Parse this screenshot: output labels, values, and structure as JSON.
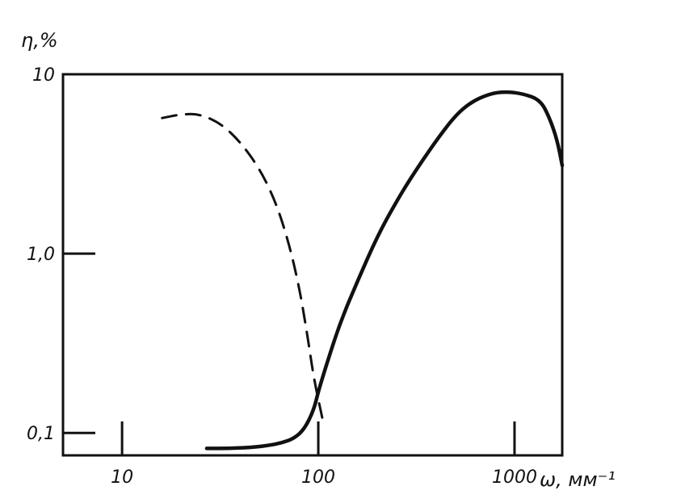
{
  "chart_data": {
    "type": "line",
    "title": "",
    "xlabel": "ω, мм⁻¹",
    "ylabel": "η,%",
    "x_scale": "log",
    "y_scale": "log",
    "xlim": [
      5,
      1750
    ],
    "ylim": [
      0.075,
      10
    ],
    "x_ticks": [
      {
        "value": 10,
        "label": "10"
      },
      {
        "value": 100,
        "label": "100"
      },
      {
        "value": 1000,
        "label": "1000"
      }
    ],
    "y_ticks": [
      {
        "value": 0.1,
        "label": "0,1"
      },
      {
        "value": 1,
        "label": "1,0"
      },
      {
        "value": 10,
        "label": "10"
      }
    ],
    "grid": false,
    "series": [
      {
        "style": "dashed",
        "color": "#111111",
        "points": [
          [
            16,
            5.7
          ],
          [
            20,
            6.0
          ],
          [
            25,
            6.0
          ],
          [
            32,
            5.3
          ],
          [
            40,
            4.2
          ],
          [
            50,
            3.0
          ],
          [
            60,
            2.0
          ],
          [
            70,
            1.2
          ],
          [
            80,
            0.65
          ],
          [
            88,
            0.35
          ],
          [
            95,
            0.2
          ],
          [
            105,
            0.12
          ]
        ]
      },
      {
        "style": "solid",
        "color": "#111111",
        "points": [
          [
            27,
            0.082
          ],
          [
            35,
            0.082
          ],
          [
            45,
            0.083
          ],
          [
            55,
            0.085
          ],
          [
            65,
            0.088
          ],
          [
            75,
            0.093
          ],
          [
            85,
            0.105
          ],
          [
            95,
            0.135
          ],
          [
            100,
            0.17
          ],
          [
            110,
            0.24
          ],
          [
            130,
            0.42
          ],
          [
            160,
            0.72
          ],
          [
            200,
            1.25
          ],
          [
            250,
            1.95
          ],
          [
            300,
            2.7
          ],
          [
            400,
            4.3
          ],
          [
            500,
            5.9
          ],
          [
            600,
            7.0
          ],
          [
            750,
            7.8
          ],
          [
            900,
            8.0
          ],
          [
            1100,
            7.8
          ],
          [
            1350,
            7.2
          ],
          [
            1500,
            5.8
          ],
          [
            1650,
            4.3
          ],
          [
            1750,
            3.1
          ]
        ]
      }
    ]
  }
}
